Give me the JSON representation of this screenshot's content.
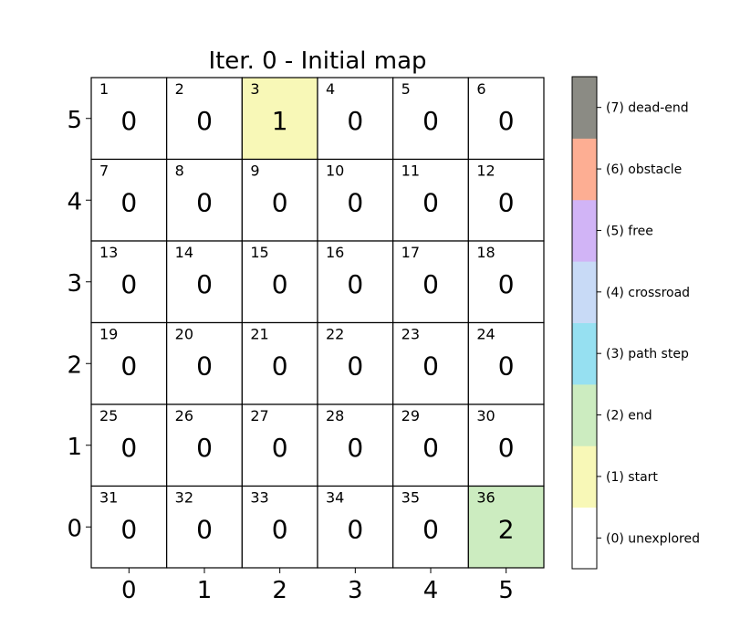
{
  "chart_data": {
    "type": "heatmap",
    "title": "Iter. 0 - Initial map",
    "xlabel": "",
    "ylabel": "",
    "x_ticks": [
      "0",
      "1",
      "2",
      "3",
      "4",
      "5"
    ],
    "y_ticks": [
      "5",
      "4",
      "3",
      "2",
      "1",
      "0"
    ],
    "cell_ids": [
      [
        "1",
        "2",
        "3",
        "4",
        "5",
        "6"
      ],
      [
        "7",
        "8",
        "9",
        "10",
        "11",
        "12"
      ],
      [
        "13",
        "14",
        "15",
        "16",
        "17",
        "18"
      ],
      [
        "19",
        "20",
        "21",
        "22",
        "23",
        "24"
      ],
      [
        "25",
        "26",
        "27",
        "28",
        "29",
        "30"
      ],
      [
        "31",
        "32",
        "33",
        "34",
        "35",
        "36"
      ]
    ],
    "values": [
      [
        0,
        0,
        1,
        0,
        0,
        0
      ],
      [
        0,
        0,
        0,
        0,
        0,
        0
      ],
      [
        0,
        0,
        0,
        0,
        0,
        0
      ],
      [
        0,
        0,
        0,
        0,
        0,
        0
      ],
      [
        0,
        0,
        0,
        0,
        0,
        0
      ],
      [
        0,
        0,
        0,
        0,
        0,
        2
      ]
    ],
    "colorbar": {
      "min": 0,
      "max": 7,
      "labels": [
        {
          "value": 0,
          "label": "(0) unexplored",
          "color": "#ffffff"
        },
        {
          "value": 1,
          "label": "(1) start",
          "color": "#f8f8b7"
        },
        {
          "value": 2,
          "label": "(2) end",
          "color": "#ccecc0"
        },
        {
          "value": 3,
          "label": "(3) path step",
          "color": "#96e0f1"
        },
        {
          "value": 4,
          "label": "(4) crossroad",
          "color": "#c8daf6"
        },
        {
          "value": 5,
          "label": "(5) free",
          "color": "#d1b4f6"
        },
        {
          "value": 6,
          "label": "(6) obstacle",
          "color": "#fdae93"
        },
        {
          "value": 7,
          "label": "(7) dead-end",
          "color": "#8b8b84"
        }
      ]
    }
  }
}
